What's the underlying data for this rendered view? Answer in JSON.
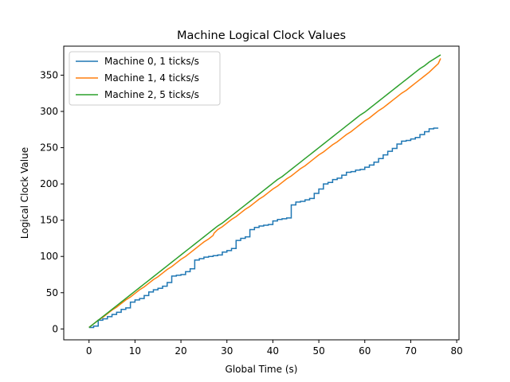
{
  "chart_data": {
    "type": "line",
    "title": "Machine Logical Clock Values",
    "xlabel": "Global Time (s)",
    "ylabel": "Logical Clock Value",
    "xlim": [
      -5.5,
      80.5
    ],
    "ylim": [
      -15,
      390
    ],
    "xticks": [
      0,
      10,
      20,
      30,
      40,
      50,
      60,
      70,
      80
    ],
    "yticks": [
      0,
      50,
      100,
      150,
      200,
      250,
      300,
      350
    ],
    "grid": false,
    "legend_position": "top-left",
    "series": [
      {
        "name": "Machine 0, 1 ticks/s",
        "color": "#1f77b4",
        "step": true,
        "points": [
          [
            0,
            2
          ],
          [
            1,
            4
          ],
          [
            2,
            12
          ],
          [
            3,
            14
          ],
          [
            4,
            17
          ],
          [
            5,
            20
          ],
          [
            6,
            23
          ],
          [
            7,
            27
          ],
          [
            8,
            29
          ],
          [
            9,
            37
          ],
          [
            10,
            40
          ],
          [
            11,
            42
          ],
          [
            12,
            46
          ],
          [
            13,
            51
          ],
          [
            14,
            54
          ],
          [
            15,
            56
          ],
          [
            16,
            59
          ],
          [
            17,
            64
          ],
          [
            18,
            73
          ],
          [
            19,
            74
          ],
          [
            20,
            75
          ],
          [
            21,
            79
          ],
          [
            22,
            83
          ],
          [
            23,
            95
          ],
          [
            24,
            97
          ],
          [
            25,
            99
          ],
          [
            26,
            100
          ],
          [
            27,
            101
          ],
          [
            28,
            102
          ],
          [
            29,
            106
          ],
          [
            30,
            108
          ],
          [
            31,
            111
          ],
          [
            32,
            122
          ],
          [
            33,
            125
          ],
          [
            34,
            127
          ],
          [
            35,
            137
          ],
          [
            36,
            140
          ],
          [
            37,
            142
          ],
          [
            38,
            143
          ],
          [
            39,
            144
          ],
          [
            40,
            149
          ],
          [
            41,
            151
          ],
          [
            42,
            152
          ],
          [
            43,
            153
          ],
          [
            44,
            171
          ],
          [
            45,
            175
          ],
          [
            46,
            176
          ],
          [
            47,
            178
          ],
          [
            48,
            180
          ],
          [
            49,
            187
          ],
          [
            50,
            193
          ],
          [
            51,
            200
          ],
          [
            52,
            202
          ],
          [
            53,
            206
          ],
          [
            54,
            208
          ],
          [
            55,
            212
          ],
          [
            56,
            216
          ],
          [
            57,
            217
          ],
          [
            58,
            219
          ],
          [
            59,
            220
          ],
          [
            60,
            223
          ],
          [
            61,
            226
          ],
          [
            62,
            230
          ],
          [
            63,
            235
          ],
          [
            64,
            240
          ],
          [
            65,
            245
          ],
          [
            66,
            249
          ],
          [
            67,
            255
          ],
          [
            68,
            259
          ],
          [
            69,
            260
          ],
          [
            70,
            262
          ],
          [
            71,
            264
          ],
          [
            72,
            268
          ],
          [
            73,
            272
          ],
          [
            74,
            276
          ],
          [
            75,
            277
          ],
          [
            76,
            277
          ]
        ]
      },
      {
        "name": "Machine 1, 4 ticks/s",
        "color": "#ff7f0e",
        "step": false,
        "points": [
          [
            0,
            2
          ],
          [
            1,
            7
          ],
          [
            2,
            12
          ],
          [
            3,
            16
          ],
          [
            4,
            21
          ],
          [
            5,
            26
          ],
          [
            6,
            30
          ],
          [
            7,
            35
          ],
          [
            8,
            40
          ],
          [
            9,
            44
          ],
          [
            10,
            49
          ],
          [
            11,
            54
          ],
          [
            12,
            58
          ],
          [
            13,
            63
          ],
          [
            14,
            68
          ],
          [
            15,
            72
          ],
          [
            16,
            77
          ],
          [
            17,
            82
          ],
          [
            18,
            86
          ],
          [
            19,
            91
          ],
          [
            20,
            96
          ],
          [
            21,
            100
          ],
          [
            22,
            105
          ],
          [
            23,
            110
          ],
          [
            24,
            115
          ],
          [
            25,
            120
          ],
          [
            26,
            124
          ],
          [
            27,
            129
          ],
          [
            27.2,
            132
          ],
          [
            28,
            137
          ],
          [
            29,
            141
          ],
          [
            30,
            146
          ],
          [
            31,
            151
          ],
          [
            32,
            155
          ],
          [
            33,
            160
          ],
          [
            34,
            165
          ],
          [
            35,
            169
          ],
          [
            36,
            174
          ],
          [
            37,
            179
          ],
          [
            38,
            183
          ],
          [
            39,
            188
          ],
          [
            40,
            193
          ],
          [
            41,
            197
          ],
          [
            42,
            202
          ],
          [
            43,
            207
          ],
          [
            44,
            211
          ],
          [
            45,
            216
          ],
          [
            46,
            221
          ],
          [
            47,
            225
          ],
          [
            48,
            230
          ],
          [
            49,
            235
          ],
          [
            50,
            240
          ],
          [
            51,
            244
          ],
          [
            52,
            249
          ],
          [
            53,
            254
          ],
          [
            54,
            258
          ],
          [
            55,
            263
          ],
          [
            56,
            268
          ],
          [
            57,
            272
          ],
          [
            58,
            277
          ],
          [
            59,
            282
          ],
          [
            60,
            287
          ],
          [
            61,
            291
          ],
          [
            62,
            296
          ],
          [
            63,
            301
          ],
          [
            64,
            305
          ],
          [
            65,
            310
          ],
          [
            66,
            315
          ],
          [
            67,
            320
          ],
          [
            68,
            325
          ],
          [
            69,
            329
          ],
          [
            70,
            334
          ],
          [
            71,
            339
          ],
          [
            72,
            344
          ],
          [
            73,
            349
          ],
          [
            74,
            354
          ],
          [
            75,
            360
          ],
          [
            76,
            366
          ],
          [
            76.5,
            373
          ]
        ]
      },
      {
        "name": "Machine 2, 5 ticks/s",
        "color": "#2ca02c",
        "step": false,
        "points": [
          [
            0,
            2
          ],
          [
            1,
            7
          ],
          [
            2,
            12
          ],
          [
            3,
            17
          ],
          [
            4,
            22
          ],
          [
            5,
            27
          ],
          [
            6,
            32
          ],
          [
            7,
            37
          ],
          [
            8,
            42
          ],
          [
            9,
            47
          ],
          [
            10,
            52
          ],
          [
            11,
            57
          ],
          [
            12,
            62
          ],
          [
            13,
            67
          ],
          [
            14,
            72
          ],
          [
            15,
            77
          ],
          [
            16,
            82
          ],
          [
            17,
            87
          ],
          [
            18,
            92
          ],
          [
            19,
            97
          ],
          [
            20,
            102
          ],
          [
            21,
            107
          ],
          [
            22,
            112
          ],
          [
            23,
            117
          ],
          [
            24,
            122
          ],
          [
            25,
            127
          ],
          [
            26,
            132
          ],
          [
            27,
            137
          ],
          [
            28,
            142
          ],
          [
            29,
            146
          ],
          [
            30,
            151
          ],
          [
            31,
            156
          ],
          [
            32,
            161
          ],
          [
            33,
            166
          ],
          [
            34,
            171
          ],
          [
            35,
            176
          ],
          [
            36,
            181
          ],
          [
            37,
            186
          ],
          [
            38,
            191
          ],
          [
            39,
            196
          ],
          [
            40,
            201
          ],
          [
            41,
            206
          ],
          [
            42,
            210
          ],
          [
            43,
            215
          ],
          [
            44,
            220
          ],
          [
            45,
            225
          ],
          [
            46,
            230
          ],
          [
            47,
            235
          ],
          [
            48,
            240
          ],
          [
            49,
            245
          ],
          [
            50,
            250
          ],
          [
            51,
            255
          ],
          [
            52,
            260
          ],
          [
            53,
            265
          ],
          [
            54,
            270
          ],
          [
            55,
            275
          ],
          [
            56,
            280
          ],
          [
            57,
            285
          ],
          [
            58,
            290
          ],
          [
            59,
            295
          ],
          [
            60,
            299
          ],
          [
            61,
            304
          ],
          [
            62,
            309
          ],
          [
            63,
            314
          ],
          [
            64,
            319
          ],
          [
            65,
            324
          ],
          [
            66,
            329
          ],
          [
            67,
            334
          ],
          [
            68,
            339
          ],
          [
            69,
            344
          ],
          [
            70,
            349
          ],
          [
            71,
            354
          ],
          [
            72,
            359
          ],
          [
            73,
            363
          ],
          [
            74,
            368
          ],
          [
            75,
            372
          ],
          [
            76.5,
            378
          ]
        ]
      }
    ]
  }
}
